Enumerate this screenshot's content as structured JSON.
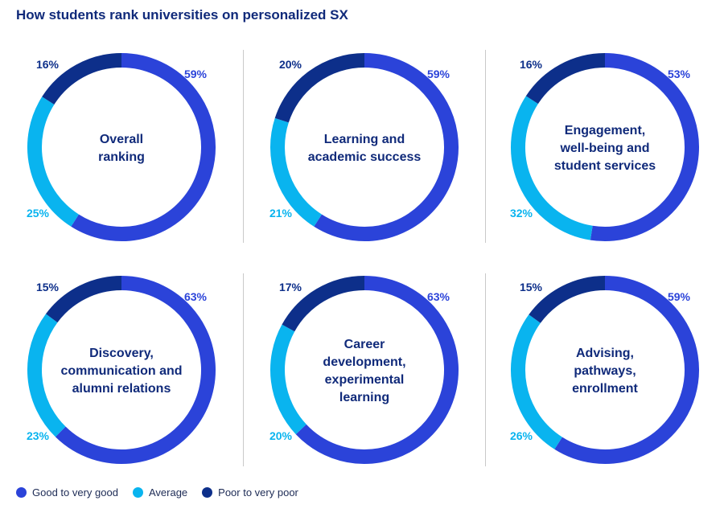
{
  "title": "How students rank universities on personalized SX",
  "colors": {
    "good": "#2b43d9",
    "average": "#09b4ef",
    "poor": "#0d2f8a",
    "center_text": "#102a7a",
    "divider": "#c9c9c9"
  },
  "legend": [
    {
      "key": "good",
      "label": "Good to very good"
    },
    {
      "key": "average",
      "label": "Average"
    },
    {
      "key": "poor",
      "label": "Poor to very poor"
    }
  ],
  "chart_data": [
    {
      "type": "pie",
      "title": "Overall ranking",
      "center_lines": [
        "Overall",
        "ranking"
      ],
      "series": [
        {
          "name": "Good to very good",
          "value": 59,
          "label": "59%"
        },
        {
          "name": "Average",
          "value": 25,
          "label": "25%"
        },
        {
          "name": "Poor to very poor",
          "value": 16,
          "label": "16%"
        }
      ]
    },
    {
      "type": "pie",
      "title": "Learning and academic success",
      "center_lines": [
        "Learning and",
        "academic success"
      ],
      "series": [
        {
          "name": "Good to very good",
          "value": 59,
          "label": "59%"
        },
        {
          "name": "Average",
          "value": 21,
          "label": "21%"
        },
        {
          "name": "Poor to very poor",
          "value": 20,
          "label": "20%"
        }
      ]
    },
    {
      "type": "pie",
      "title": "Engagement, well-being and student services",
      "center_lines": [
        "Engagement,",
        "well-being and",
        "student services"
      ],
      "series": [
        {
          "name": "Good to very good",
          "value": 53,
          "label": "53%"
        },
        {
          "name": "Average",
          "value": 32,
          "label": "32%"
        },
        {
          "name": "Poor to very poor",
          "value": 16,
          "label": "16%"
        }
      ]
    },
    {
      "type": "pie",
      "title": "Discovery, communication and alumni relations",
      "center_lines": [
        "Discovery,",
        "communication and",
        "alumni relations"
      ],
      "series": [
        {
          "name": "Good to very good",
          "value": 63,
          "label": "63%"
        },
        {
          "name": "Average",
          "value": 23,
          "label": "23%"
        },
        {
          "name": "Poor to very poor",
          "value": 15,
          "label": "15%"
        }
      ]
    },
    {
      "type": "pie",
      "title": "Career development, experimental learning",
      "center_lines": [
        "Career",
        "development,",
        "experimental",
        "learning"
      ],
      "series": [
        {
          "name": "Good to very good",
          "value": 63,
          "label": "63%"
        },
        {
          "name": "Average",
          "value": 20,
          "label": "20%"
        },
        {
          "name": "Poor to very poor",
          "value": 17,
          "label": "17%"
        }
      ]
    },
    {
      "type": "pie",
      "title": "Advising, pathways, enrollment",
      "center_lines": [
        "Advising,",
        "pathways,",
        "enrollment"
      ],
      "series": [
        {
          "name": "Good to very good",
          "value": 59,
          "label": "59%"
        },
        {
          "name": "Average",
          "value": 26,
          "label": "26%"
        },
        {
          "name": "Poor to very poor",
          "value": 15,
          "label": "15%"
        }
      ]
    }
  ]
}
